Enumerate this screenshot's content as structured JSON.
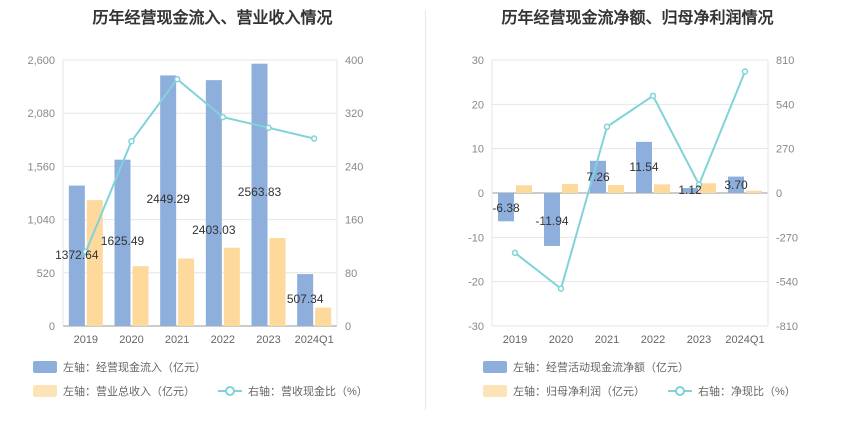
{
  "charts": [
    {
      "title": "历年经营现金流入、营业收入情况",
      "legend": {
        "bar1": "左轴：经营现金流入（亿元）",
        "bar2": "左轴：营业总收入（亿元）",
        "line": "右轴：营收现金比（%）"
      }
    },
    {
      "title": "历年经营现金流净额、归母净利润情况",
      "legend": {
        "bar1": "左轴：经营活动现金流净额（亿元）",
        "bar2": "左轴：归母净利润（亿元）",
        "line": "右轴：净现比（%）"
      }
    }
  ],
  "chart_data": [
    {
      "type": "bar",
      "title": "历年经营现金流入、营业收入情况",
      "categories": [
        "2019",
        "2020",
        "2021",
        "2022",
        "2023",
        "2024Q1"
      ],
      "left_axis": {
        "ylim": [
          0,
          2600
        ],
        "ticks": [
          "0",
          "520",
          "1,040",
          "1,560",
          "2,080",
          "2,600"
        ]
      },
      "right_axis": {
        "ylim": [
          0,
          400
        ],
        "ticks": [
          "0",
          "80",
          "160",
          "240",
          "320",
          "400"
        ]
      },
      "series": [
        {
          "name": "左轴：经营现金流入（亿元）",
          "axis": "left",
          "type": "bar",
          "color": "#8eaedc",
          "values": [
            1372.64,
            1625.49,
            2449.29,
            2403.03,
            2563.83,
            507.34
          ],
          "labels": [
            "1372.64",
            "1625.49",
            "2449.29",
            "2403.03",
            "2563.83",
            "507.34"
          ]
        },
        {
          "name": "左轴：营业总收入（亿元）",
          "axis": "left",
          "type": "bar",
          "color": "#fdd99b",
          "values": [
            1230,
            585,
            660,
            765,
            860,
            180
          ]
        },
        {
          "name": "右轴：营收现金比（%）",
          "axis": "right",
          "type": "line",
          "color": "#7fd3d9",
          "values": [
            111.6,
            277.9,
            371.1,
            314.1,
            298.1,
            281.9
          ]
        }
      ],
      "grid": true,
      "legend_position": "bottom-left"
    },
    {
      "type": "bar",
      "title": "历年经营现金流净额、归母净利润情况",
      "categories": [
        "2019",
        "2020",
        "2021",
        "2022",
        "2023",
        "2024Q1"
      ],
      "left_axis": {
        "ylim": [
          -30,
          30
        ],
        "ticks": [
          "-30",
          "-20",
          "-10",
          "0",
          "10",
          "20",
          "30"
        ]
      },
      "right_axis": {
        "ylim": [
          -810,
          810
        ],
        "ticks": [
          "-810",
          "-540",
          "-270",
          "0",
          "270",
          "540",
          "810"
        ]
      },
      "series": [
        {
          "name": "左轴：经营活动现金流净额（亿元）",
          "axis": "left",
          "type": "bar",
          "color": "#8eaedc",
          "values": [
            -6.38,
            -11.94,
            7.26,
            11.54,
            1.12,
            3.7
          ],
          "labels": [
            "-6.38",
            "-11.94",
            "7.26",
            "11.54",
            "1.12",
            "3.70"
          ]
        },
        {
          "name": "左轴：归母净利润（亿元）",
          "axis": "left",
          "type": "bar",
          "color": "#fdd99b",
          "values": [
            1.75,
            2.05,
            1.8,
            1.95,
            2.2,
            0.5
          ]
        },
        {
          "name": "右轴：净现比（%）",
          "axis": "right",
          "type": "line",
          "color": "#7fd3d9",
          "values": [
            -364.6,
            -582.4,
            403.3,
            591.8,
            50.9,
            740.0
          ]
        }
      ],
      "grid": true,
      "legend_position": "bottom-left"
    }
  ]
}
